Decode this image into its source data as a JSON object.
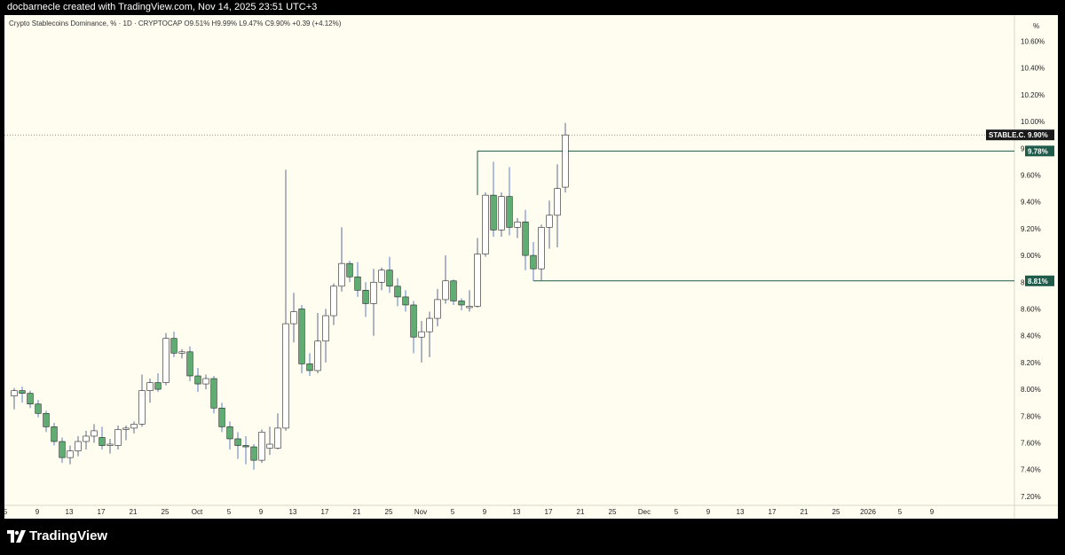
{
  "header": {
    "attribution": "docbarnecle created with TradingView.com, Nov 14, 2025 23:51 UTC+3"
  },
  "legend": {
    "text": "Crypto Stablecoins Dominance, % · 1D · CRYPTOCAP  O9.51%  H9.99%  L9.47%  C9.90%  +0.39 (+4.12%)"
  },
  "footer": {
    "brand": "TradingView"
  },
  "colors": {
    "background": "#fffdf0",
    "bull": "#ffffff",
    "bear": "#5fad73",
    "candle_outline": "#222222",
    "wick": "#5b7fc9",
    "level_line": "#1f5b4a",
    "tag_bg": "#1f5b4a"
  },
  "chart_data": {
    "type": "candlestick",
    "title": "Crypto Stablecoins Dominance",
    "symbol": "STABLE.C.D",
    "timeframe": "1D",
    "source": "CRYPTOCAP",
    "unit": "%",
    "ylim": [
      7.1,
      10.7
    ],
    "yticks": [
      "10.60%",
      "10.40%",
      "10.20%",
      "10.00%",
      "9.80%",
      "9.60%",
      "9.40%",
      "9.20%",
      "9.00%",
      "8.80%",
      "8.60%",
      "8.40%",
      "8.20%",
      "8.00%",
      "7.80%",
      "7.60%",
      "7.40%",
      "7.20%"
    ],
    "xtick_labels": [
      "5",
      "9",
      "13",
      "17",
      "21",
      "25",
      "Oct",
      "5",
      "9",
      "13",
      "17",
      "21",
      "25",
      "Nov",
      "5",
      "9",
      "13",
      "17",
      "21",
      "25",
      "Dec",
      "5",
      "9",
      "13",
      "17",
      "21",
      "25",
      "2026",
      "5",
      "9"
    ],
    "candles": [
      {
        "date": "2025-09-06",
        "open": 7.95,
        "high": 8.01,
        "low": 7.85,
        "close": 7.99
      },
      {
        "date": "2025-09-07",
        "open": 7.99,
        "high": 8.02,
        "low": 7.9,
        "close": 7.97
      },
      {
        "date": "2025-09-08",
        "open": 7.97,
        "high": 7.99,
        "low": 7.86,
        "close": 7.89
      },
      {
        "date": "2025-09-09",
        "open": 7.89,
        "high": 7.92,
        "low": 7.79,
        "close": 7.82
      },
      {
        "date": "2025-09-10",
        "open": 7.82,
        "high": 7.84,
        "low": 7.68,
        "close": 7.72
      },
      {
        "date": "2025-09-11",
        "open": 7.72,
        "high": 7.75,
        "low": 7.58,
        "close": 7.61
      },
      {
        "date": "2025-09-12",
        "open": 7.61,
        "high": 7.64,
        "low": 7.45,
        "close": 7.49
      },
      {
        "date": "2025-09-13",
        "open": 7.49,
        "high": 7.58,
        "low": 7.44,
        "close": 7.54
      },
      {
        "date": "2025-09-14",
        "open": 7.54,
        "high": 7.65,
        "low": 7.5,
        "close": 7.61
      },
      {
        "date": "2025-09-15",
        "open": 7.61,
        "high": 7.69,
        "low": 7.55,
        "close": 7.65
      },
      {
        "date": "2025-09-16",
        "open": 7.65,
        "high": 7.74,
        "low": 7.6,
        "close": 7.69
      },
      {
        "date": "2025-09-17",
        "open": 7.64,
        "high": 7.72,
        "low": 7.55,
        "close": 7.58
      },
      {
        "date": "2025-09-18",
        "open": 7.58,
        "high": 7.63,
        "low": 7.52,
        "close": 7.59
      },
      {
        "date": "2025-09-19",
        "open": 7.58,
        "high": 7.73,
        "low": 7.55,
        "close": 7.7
      },
      {
        "date": "2025-09-20",
        "open": 7.7,
        "high": 7.73,
        "low": 7.62,
        "close": 7.71
      },
      {
        "date": "2025-09-21",
        "open": 7.71,
        "high": 7.76,
        "low": 7.67,
        "close": 7.74
      },
      {
        "date": "2025-09-22",
        "open": 7.74,
        "high": 8.11,
        "low": 7.72,
        "close": 7.99
      },
      {
        "date": "2025-09-23",
        "open": 7.99,
        "high": 8.08,
        "low": 7.9,
        "close": 8.05
      },
      {
        "date": "2025-09-24",
        "open": 8.05,
        "high": 8.12,
        "low": 7.98,
        "close": 8.0
      },
      {
        "date": "2025-09-25",
        "open": 8.05,
        "high": 8.42,
        "low": 8.03,
        "close": 8.38
      },
      {
        "date": "2025-09-26",
        "open": 8.38,
        "high": 8.43,
        "low": 8.24,
        "close": 8.27
      },
      {
        "date": "2025-09-27",
        "open": 8.27,
        "high": 8.3,
        "low": 8.23,
        "close": 8.28
      },
      {
        "date": "2025-09-28",
        "open": 8.28,
        "high": 8.32,
        "low": 8.06,
        "close": 8.1
      },
      {
        "date": "2025-09-29",
        "open": 8.1,
        "high": 8.16,
        "low": 7.98,
        "close": 8.04
      },
      {
        "date": "2025-09-30",
        "open": 8.04,
        "high": 8.11,
        "low": 8.0,
        "close": 8.08
      },
      {
        "date": "2025-10-01",
        "open": 8.08,
        "high": 8.1,
        "low": 7.82,
        "close": 7.86
      },
      {
        "date": "2025-10-02",
        "open": 7.86,
        "high": 7.9,
        "low": 7.68,
        "close": 7.72
      },
      {
        "date": "2025-10-03",
        "open": 7.72,
        "high": 7.76,
        "low": 7.55,
        "close": 7.63
      },
      {
        "date": "2025-10-04",
        "open": 7.63,
        "high": 7.68,
        "low": 7.48,
        "close": 7.58
      },
      {
        "date": "2025-10-05",
        "open": 7.58,
        "high": 7.65,
        "low": 7.44,
        "close": 7.57
      },
      {
        "date": "2025-10-06",
        "open": 7.57,
        "high": 7.59,
        "low": 7.4,
        "close": 7.47
      },
      {
        "date": "2025-10-07",
        "open": 7.47,
        "high": 7.7,
        "low": 7.45,
        "close": 7.68
      },
      {
        "date": "2025-10-08",
        "open": 7.56,
        "high": 7.72,
        "low": 7.51,
        "close": 7.59
      },
      {
        "date": "2025-10-09",
        "open": 7.56,
        "high": 7.82,
        "low": 7.55,
        "close": 7.71
      },
      {
        "date": "2025-10-10",
        "open": 7.71,
        "high": 9.64,
        "low": 7.69,
        "close": 8.49
      },
      {
        "date": "2025-10-11",
        "open": 8.49,
        "high": 8.72,
        "low": 8.35,
        "close": 8.58
      },
      {
        "date": "2025-10-12",
        "open": 8.6,
        "high": 8.63,
        "low": 8.12,
        "close": 8.19
      },
      {
        "date": "2025-10-13",
        "open": 8.19,
        "high": 8.27,
        "low": 8.1,
        "close": 8.14
      },
      {
        "date": "2025-10-14",
        "open": 8.14,
        "high": 8.57,
        "low": 8.12,
        "close": 8.36
      },
      {
        "date": "2025-10-15",
        "open": 8.36,
        "high": 8.6,
        "low": 8.2,
        "close": 8.55
      },
      {
        "date": "2025-10-16",
        "open": 8.55,
        "high": 8.79,
        "low": 8.48,
        "close": 8.77
      },
      {
        "date": "2025-10-17",
        "open": 8.77,
        "high": 9.21,
        "low": 8.73,
        "close": 8.94
      },
      {
        "date": "2025-10-18",
        "open": 8.94,
        "high": 8.96,
        "low": 8.8,
        "close": 8.84
      },
      {
        "date": "2025-10-19",
        "open": 8.84,
        "high": 8.95,
        "low": 8.69,
        "close": 8.74
      },
      {
        "date": "2025-10-20",
        "open": 8.74,
        "high": 8.8,
        "low": 8.54,
        "close": 8.64
      },
      {
        "date": "2025-10-21",
        "open": 8.64,
        "high": 8.9,
        "low": 8.4,
        "close": 8.8
      },
      {
        "date": "2025-10-22",
        "open": 8.8,
        "high": 8.91,
        "low": 8.74,
        "close": 8.89
      },
      {
        "date": "2025-10-23",
        "open": 8.89,
        "high": 8.99,
        "low": 8.72,
        "close": 8.77
      },
      {
        "date": "2025-10-24",
        "open": 8.77,
        "high": 8.83,
        "low": 8.62,
        "close": 8.69
      },
      {
        "date": "2025-10-25",
        "open": 8.69,
        "high": 8.74,
        "low": 8.58,
        "close": 8.63
      },
      {
        "date": "2025-10-26",
        "open": 8.63,
        "high": 8.66,
        "low": 8.27,
        "close": 8.39
      },
      {
        "date": "2025-10-27",
        "open": 8.39,
        "high": 8.51,
        "low": 8.2,
        "close": 8.43
      },
      {
        "date": "2025-10-28",
        "open": 8.43,
        "high": 8.58,
        "low": 8.24,
        "close": 8.53
      },
      {
        "date": "2025-10-29",
        "open": 8.53,
        "high": 8.75,
        "low": 8.47,
        "close": 8.67
      },
      {
        "date": "2025-10-30",
        "open": 8.67,
        "high": 9.0,
        "low": 8.64,
        "close": 8.81
      },
      {
        "date": "2025-10-31",
        "open": 8.81,
        "high": 8.82,
        "low": 8.63,
        "close": 8.66
      },
      {
        "date": "2025-11-01",
        "open": 8.66,
        "high": 8.68,
        "low": 8.59,
        "close": 8.63
      },
      {
        "date": "2025-11-02",
        "open": 8.61,
        "high": 8.74,
        "low": 8.58,
        "close": 8.62
      },
      {
        "date": "2025-11-03",
        "open": 8.62,
        "high": 9.13,
        "low": 8.61,
        "close": 9.01
      },
      {
        "date": "2025-11-04",
        "open": 9.01,
        "high": 9.47,
        "low": 8.99,
        "close": 9.45
      },
      {
        "date": "2025-11-05",
        "open": 9.45,
        "high": 9.7,
        "low": 9.14,
        "close": 9.19
      },
      {
        "date": "2025-11-06",
        "open": 9.19,
        "high": 9.47,
        "low": 9.14,
        "close": 9.44
      },
      {
        "date": "2025-11-07",
        "open": 9.44,
        "high": 9.66,
        "low": 9.15,
        "close": 9.21
      },
      {
        "date": "2025-11-08",
        "open": 9.21,
        "high": 9.28,
        "low": 9.13,
        "close": 9.25
      },
      {
        "date": "2025-11-09",
        "open": 9.25,
        "high": 9.34,
        "low": 8.89,
        "close": 9.0
      },
      {
        "date": "2025-11-10",
        "open": 9.0,
        "high": 9.1,
        "low": 8.81,
        "close": 8.9
      },
      {
        "date": "2025-11-11",
        "open": 8.9,
        "high": 9.23,
        "low": 8.81,
        "close": 9.21
      },
      {
        "date": "2025-11-12",
        "open": 9.21,
        "high": 9.41,
        "low": 9.05,
        "close": 9.3
      },
      {
        "date": "2025-11-13",
        "open": 9.3,
        "high": 9.68,
        "low": 9.06,
        "close": 9.5
      },
      {
        "date": "2025-11-14",
        "open": 9.51,
        "high": 9.99,
        "low": 9.47,
        "close": 9.9
      }
    ],
    "levels": [
      {
        "label": "9.78%",
        "value": 9.78
      },
      {
        "label": "8.81%",
        "value": 8.81
      }
    ],
    "last_price": {
      "label": "STABLE.C.D",
      "value_label": "9.90%",
      "value": 9.9
    }
  }
}
